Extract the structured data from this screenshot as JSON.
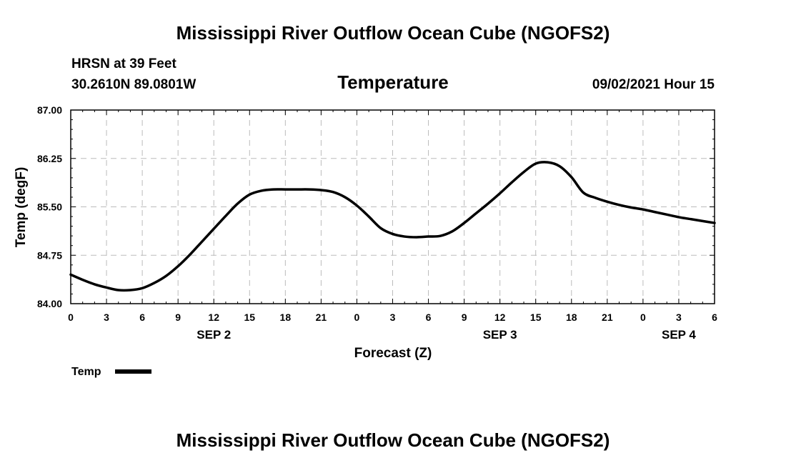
{
  "header": {
    "title": "Mississippi River Outflow Ocean Cube (NGOFS2)",
    "station": "HRSN at 39 Feet",
    "coords": "30.2610N  89.0801W",
    "panel_title": "Temperature",
    "timestamp": "09/02/2021 Hour 15"
  },
  "footer": {
    "title": "Mississippi River Outflow Ocean Cube (NGOFS2)"
  },
  "chart_data": {
    "type": "line",
    "title": "Temperature",
    "xlabel": "Forecast (Z)",
    "ylabel": "Temp (degF)",
    "xlim": [
      0,
      54
    ],
    "ylim": [
      84.0,
      87.0
    ],
    "x_ticks": [
      0,
      3,
      6,
      9,
      12,
      15,
      18,
      21,
      24,
      27,
      30,
      33,
      36,
      39,
      42,
      45,
      48,
      51,
      54
    ],
    "x_tick_labels": [
      "0",
      "3",
      "6",
      "9",
      "12",
      "15",
      "18",
      "21",
      "0",
      "3",
      "6",
      "9",
      "12",
      "15",
      "18",
      "21",
      "0",
      "3",
      "6"
    ],
    "y_ticks": [
      84.0,
      84.75,
      85.5,
      86.25,
      87.0
    ],
    "y_tick_labels": [
      "84.00",
      "84.75",
      "85.50",
      "86.25",
      "87.00"
    ],
    "date_labels": [
      {
        "x": 12,
        "label": "SEP 2"
      },
      {
        "x": 36,
        "label": "SEP 3"
      },
      {
        "x": 51,
        "label": "SEP 4"
      }
    ],
    "grid": true,
    "series": [
      {
        "name": "Temp",
        "color": "#000000",
        "x": [
          0,
          1,
          2,
          3,
          4,
          5,
          6,
          7,
          8,
          9,
          10,
          11,
          12,
          13,
          14,
          15,
          16,
          17,
          18,
          19,
          20,
          21,
          22,
          23,
          24,
          25,
          26,
          27,
          28,
          29,
          30,
          31,
          32,
          33,
          34,
          35,
          36,
          37,
          38,
          39,
          40,
          41,
          42,
          43,
          44,
          45,
          46,
          47,
          48,
          49,
          50,
          51,
          52,
          53,
          54
        ],
        "values": [
          84.45,
          84.37,
          84.3,
          84.25,
          84.21,
          84.21,
          84.24,
          84.32,
          84.43,
          84.58,
          84.76,
          84.96,
          85.16,
          85.36,
          85.55,
          85.69,
          85.75,
          85.77,
          85.77,
          85.77,
          85.77,
          85.76,
          85.73,
          85.65,
          85.52,
          85.35,
          85.17,
          85.08,
          85.04,
          85.03,
          85.04,
          85.05,
          85.12,
          85.25,
          85.4,
          85.55,
          85.71,
          85.88,
          86.04,
          86.17,
          86.19,
          86.13,
          85.96,
          85.72,
          85.64,
          85.58,
          85.53,
          85.49,
          85.46,
          85.42,
          85.38,
          85.34,
          85.31,
          85.28,
          85.25
        ]
      }
    ],
    "legend": {
      "label": "Temp",
      "position": "bottom-left"
    }
  }
}
